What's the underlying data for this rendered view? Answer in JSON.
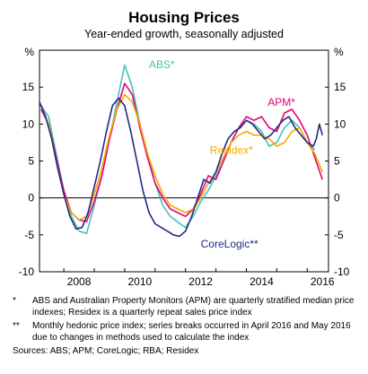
{
  "title": "Housing Prices",
  "subtitle": "Year-ended growth, seasonally adjusted",
  "notes": [
    {
      "mark": "*",
      "text": "ABS and Australian Property Monitors (APM) are quarterly stratified median price indexes; Residex is a quarterly repeat sales price index"
    },
    {
      "mark": "**",
      "text": "Monthly hedonic price index; series breaks occurred in April 2016 and May 2016 due to changes in methods used to calculate the index"
    }
  ],
  "sources": "Sources:  ABS; APM; CoreLogic; RBA; Residex",
  "chart_data": {
    "type": "line",
    "ylabel_left": "%",
    "ylabel_right": "%",
    "ylim": [
      -10,
      20
    ],
    "yticks": [
      -10,
      -5,
      0,
      5,
      10,
      15
    ],
    "xlim": [
      2007.2,
      2016.7
    ],
    "xticks": [
      2008,
      2010,
      2012,
      2014,
      2016
    ],
    "grid": false,
    "zero_line": true,
    "series": [
      {
        "name": "ABS*",
        "color": "#49c2b6",
        "x": [
          2007.25,
          2007.5,
          2007.75,
          2008.0,
          2008.25,
          2008.5,
          2008.75,
          2009.0,
          2009.25,
          2009.5,
          2009.75,
          2010.0,
          2010.25,
          2010.5,
          2010.75,
          2011.0,
          2011.25,
          2011.5,
          2011.75,
          2012.0,
          2012.25,
          2012.5,
          2012.75,
          2013.0,
          2013.25,
          2013.5,
          2013.75,
          2014.0,
          2014.25,
          2014.5,
          2014.75,
          2015.0,
          2015.25,
          2015.5,
          2015.75,
          2016.0,
          2016.25
        ],
        "values": [
          12.5,
          11,
          6,
          1,
          -2.5,
          -4.5,
          -4.8,
          -1,
          3,
          8,
          13,
          18,
          15,
          10,
          6,
          2,
          -1,
          -2.5,
          -3.3,
          -4,
          -2.5,
          -0.5,
          1,
          3,
          5,
          7.5,
          9.5,
          10.5,
          10,
          9,
          7,
          7.5,
          9.5,
          10.5,
          9.5,
          7.5,
          6.5
        ]
      },
      {
        "name": "APM*",
        "color": "#e6007e",
        "x": [
          2007.25,
          2007.5,
          2007.75,
          2008.0,
          2008.25,
          2008.5,
          2008.75,
          2009.0,
          2009.25,
          2009.5,
          2009.75,
          2010.0,
          2010.25,
          2010.5,
          2010.75,
          2011.0,
          2011.25,
          2011.5,
          2011.75,
          2012.0,
          2012.25,
          2012.5,
          2012.75,
          2013.0,
          2013.25,
          2013.5,
          2013.75,
          2014.0,
          2014.25,
          2014.5,
          2014.75,
          2015.0,
          2015.25,
          2015.5,
          2015.75,
          2016.0,
          2016.25,
          2016.5
        ],
        "values": [
          12,
          10,
          5.5,
          1,
          -2,
          -3,
          -3.2,
          -0.5,
          3,
          8,
          12,
          15.5,
          14,
          9.5,
          5.5,
          2,
          0,
          -1.5,
          -2,
          -2.5,
          -1.5,
          0.5,
          3,
          2.5,
          5,
          7.5,
          9.5,
          11,
          10.5,
          11,
          9.5,
          9,
          11.5,
          12,
          10.5,
          8.5,
          5.5,
          2.5
        ]
      },
      {
        "name": "Residex*",
        "color": "#f5a800",
        "x": [
          2007.25,
          2007.5,
          2007.75,
          2008.0,
          2008.25,
          2008.5,
          2008.75,
          2009.0,
          2009.25,
          2009.5,
          2009.75,
          2010.0,
          2010.25,
          2010.5,
          2010.75,
          2011.0,
          2011.25,
          2011.5,
          2011.75,
          2012.0,
          2012.25,
          2012.5,
          2012.75,
          2013.0,
          2013.25,
          2013.5,
          2013.75,
          2014.0,
          2014.25,
          2014.5,
          2014.75,
          2015.0,
          2015.25,
          2015.5,
          2015.75,
          2016.0,
          2016.25,
          2016.5
        ],
        "values": [
          12.5,
          10,
          5,
          0.5,
          -2,
          -3,
          -2.5,
          0.5,
          4,
          8.5,
          12,
          14,
          13,
          10,
          6,
          3,
          0.5,
          -1,
          -1.5,
          -2,
          -1.5,
          0,
          2,
          3.5,
          5.5,
          7.5,
          8.5,
          9,
          8.5,
          8.5,
          8,
          7,
          7.5,
          9,
          9.5,
          7.5,
          6,
          3.5
        ]
      },
      {
        "name": "CoreLogic**",
        "color": "#1f2a80",
        "x": [
          2007.2,
          2007.4,
          2007.6,
          2007.8,
          2008.0,
          2008.2,
          2008.4,
          2008.6,
          2008.8,
          2009.0,
          2009.2,
          2009.4,
          2009.6,
          2009.8,
          2010.0,
          2010.2,
          2010.4,
          2010.6,
          2010.8,
          2011.0,
          2011.2,
          2011.4,
          2011.6,
          2011.8,
          2012.0,
          2012.2,
          2012.4,
          2012.6,
          2012.8,
          2013.0,
          2013.2,
          2013.4,
          2013.6,
          2013.8,
          2014.0,
          2014.2,
          2014.4,
          2014.6,
          2014.8,
          2015.0,
          2015.2,
          2015.4,
          2015.6,
          2015.8,
          2016.0,
          2016.2,
          2016.3,
          2016.4,
          2016.5
        ],
        "values": [
          13,
          11,
          8,
          4,
          0.5,
          -2.5,
          -4.2,
          -4,
          -2,
          1.5,
          5,
          9,
          12.5,
          13.5,
          12.5,
          9,
          5,
          1,
          -2,
          -3.5,
          -4,
          -4.5,
          -5,
          -5.2,
          -4.5,
          -2.5,
          0,
          2.5,
          2,
          3.5,
          6,
          8,
          9,
          9.5,
          10.5,
          10,
          9,
          8,
          8.5,
          9.5,
          10.5,
          11,
          9.5,
          8.5,
          7.5,
          7,
          8,
          10,
          8.5
        ]
      }
    ],
    "series_labels": [
      {
        "series": "ABS*",
        "x": 2010.8,
        "y": 17.6
      },
      {
        "series": "APM*",
        "x": 2014.7,
        "y": 12.5
      },
      {
        "series": "Residex*",
        "x": 2012.8,
        "y": 6.0
      },
      {
        "series": "CoreLogic**",
        "x": 2012.5,
        "y": -6.7
      }
    ]
  }
}
